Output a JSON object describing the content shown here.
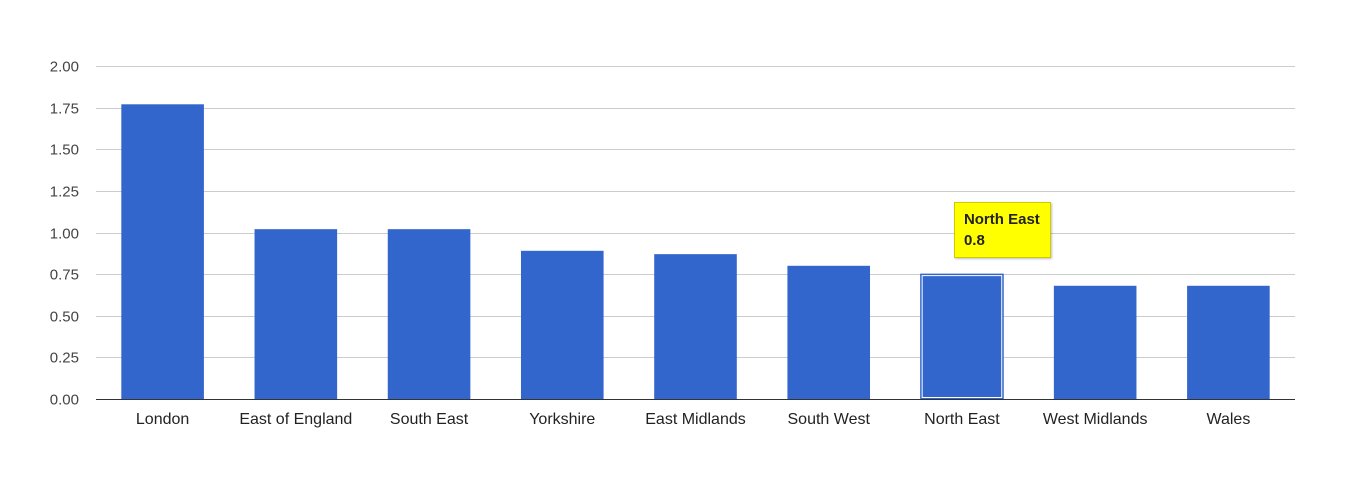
{
  "chart_data": {
    "type": "bar",
    "categories": [
      "London",
      "East of England",
      "South East",
      "Yorkshire",
      "East Midlands",
      "South West",
      "North East",
      "West Midlands",
      "Wales"
    ],
    "values": [
      1.77,
      1.02,
      1.02,
      0.89,
      0.87,
      0.8,
      0.75,
      0.68,
      0.68
    ],
    "ylim": [
      0,
      2
    ],
    "yticks": [
      "0.00",
      "0.25",
      "0.50",
      "0.75",
      "1.00",
      "1.25",
      "1.50",
      "1.75",
      "2.00"
    ],
    "grid": true,
    "bar_color": "#3366cc",
    "highlighted_index": 6
  },
  "tooltip": {
    "category": "North East",
    "value": "0.8",
    "background": "#ffff00"
  }
}
